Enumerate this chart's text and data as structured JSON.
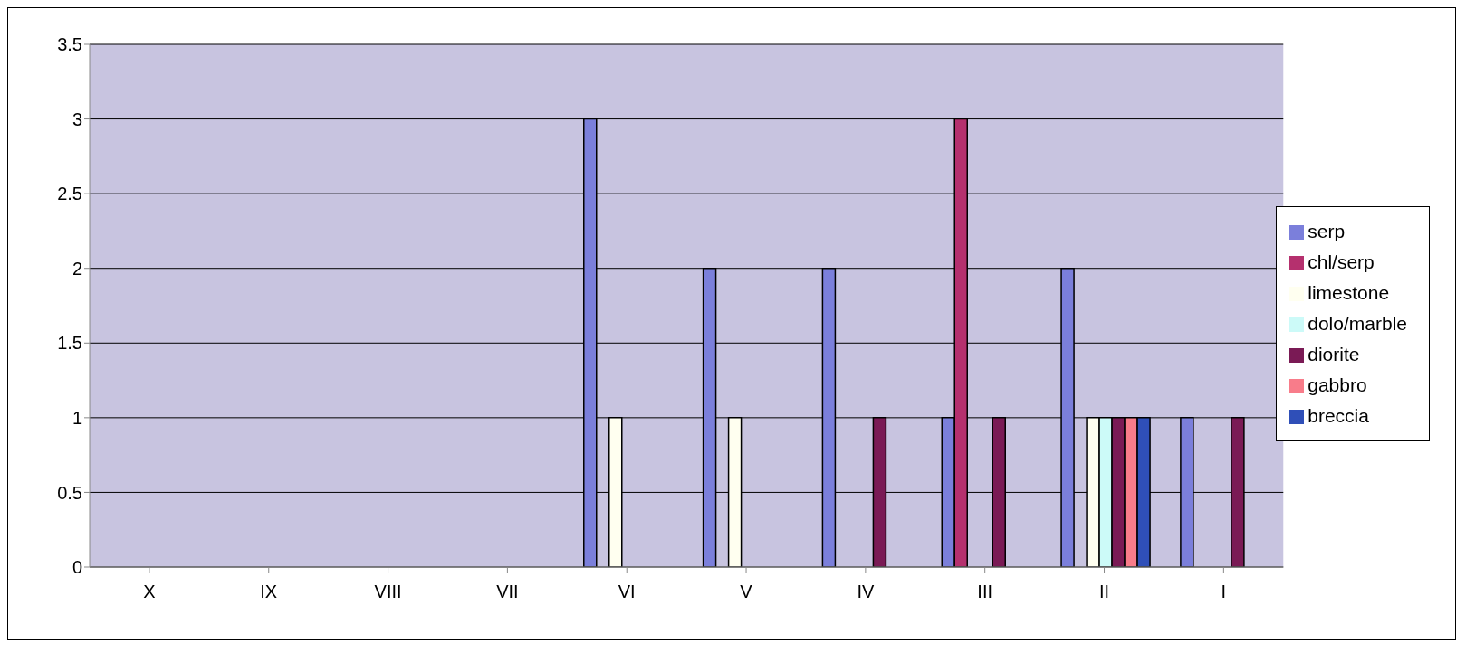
{
  "chart_data": {
    "type": "bar",
    "categories": [
      "X",
      "IX",
      "VIII",
      "VII",
      "VI",
      "V",
      "IV",
      "III",
      "II",
      "I"
    ],
    "series": [
      {
        "name": "serp",
        "color": "#7b7fdb",
        "values": [
          0,
          0,
          0,
          0,
          3,
          2,
          2,
          1,
          2,
          1
        ]
      },
      {
        "name": "chl/serp",
        "color": "#b5306e",
        "values": [
          0,
          0,
          0,
          0,
          0,
          0,
          0,
          3,
          0,
          0
        ]
      },
      {
        "name": "limestone",
        "color": "#fffff0",
        "values": [
          0,
          0,
          0,
          0,
          1,
          1,
          0,
          0,
          1,
          0
        ]
      },
      {
        "name": "dolo/marble",
        "color": "#ccfaf8",
        "values": [
          0,
          0,
          0,
          0,
          0,
          0,
          0,
          0,
          1,
          0
        ]
      },
      {
        "name": "diorite",
        "color": "#7a1a55",
        "values": [
          0,
          0,
          0,
          0,
          0,
          0,
          1,
          1,
          1,
          1
        ]
      },
      {
        "name": "gabbro",
        "color": "#f87c8a",
        "values": [
          0,
          0,
          0,
          0,
          0,
          0,
          0,
          0,
          1,
          0
        ]
      },
      {
        "name": "breccia",
        "color": "#2f4fb8",
        "values": [
          0,
          0,
          0,
          0,
          0,
          0,
          0,
          0,
          1,
          0
        ]
      }
    ],
    "ylim": [
      0,
      3.5
    ],
    "yticks": [
      0,
      0.5,
      1,
      1.5,
      2,
      2.5,
      3,
      3.5
    ],
    "grid": "y",
    "legend": "right"
  }
}
